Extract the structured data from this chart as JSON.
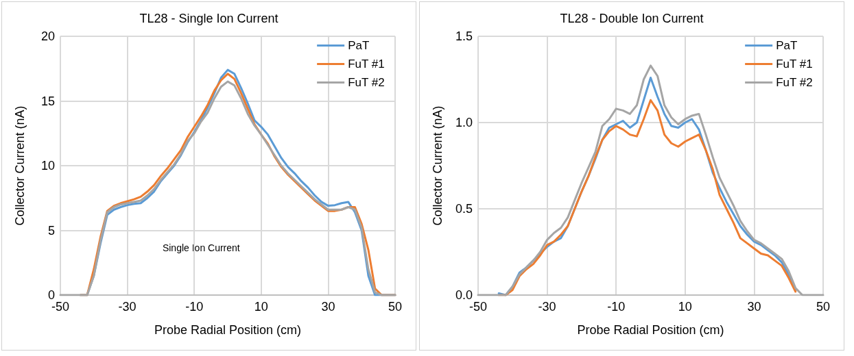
{
  "chart_data": [
    {
      "type": "line",
      "title": "TL28 - Single Ion Current",
      "xlabel": "Probe Radial Position (cm)",
      "ylabel": "Collector Current (nA)",
      "annotations": [
        "Single Ion Current"
      ],
      "x": [
        -50,
        -48,
        -46,
        -44,
        -42,
        -40,
        -38,
        -36,
        -34,
        -32,
        -30,
        -28,
        -26,
        -24,
        -22,
        -20,
        -18,
        -16,
        -14,
        -12,
        -10,
        -8,
        -6,
        -4,
        -2,
        0,
        2,
        4,
        6,
        8,
        10,
        12,
        14,
        16,
        18,
        20,
        22,
        24,
        26,
        28,
        30,
        32,
        34,
        36,
        38,
        40,
        42,
        44,
        46,
        48,
        50
      ],
      "series": [
        {
          "name": "PaT",
          "color": "#5b9bd5",
          "values": [
            null,
            null,
            null,
            0,
            0,
            1.5,
            4,
            6.2,
            6.6,
            6.8,
            6.95,
            7.05,
            7.1,
            7.5,
            8,
            8.8,
            9.4,
            10,
            10.8,
            11.8,
            12.6,
            13.5,
            14.5,
            15.6,
            16.8,
            17.4,
            17.1,
            16,
            14.8,
            13.5,
            13,
            12.4,
            11.5,
            10.6,
            9.9,
            9.4,
            8.8,
            8.3,
            7.7,
            7.2,
            6.9,
            6.95,
            7.1,
            7.2,
            6.4,
            5,
            1.5,
            0,
            0,
            0,
            0
          ]
        },
        {
          "name": "FuT #1",
          "color": "#ed7d31",
          "values": [
            null,
            null,
            null,
            0,
            0,
            2,
            4.5,
            6.5,
            6.9,
            7.1,
            7.25,
            7.4,
            7.6,
            8,
            8.5,
            9.2,
            9.8,
            10.5,
            11.2,
            12.2,
            13,
            13.8,
            14.7,
            15.8,
            16.6,
            17.1,
            16.7,
            15.6,
            14.4,
            13.2,
            12.4,
            11.7,
            10.7,
            9.9,
            9.3,
            8.8,
            8.3,
            7.8,
            7.3,
            6.9,
            6.5,
            6.5,
            6.6,
            6.8,
            6.8,
            5.5,
            3.5,
            0.5,
            0,
            0,
            0
          ]
        },
        {
          "name": "FuT #2",
          "color": "#a5a5a5",
          "values": [
            0,
            0,
            0,
            0,
            0,
            1.5,
            4.2,
            6.4,
            6.8,
            7,
            7.1,
            7.2,
            7.3,
            7.7,
            8.2,
            8.9,
            9.5,
            10.1,
            10.9,
            11.9,
            12.5,
            13.4,
            14.1,
            15.2,
            16.1,
            16.5,
            16.2,
            15.2,
            14,
            13.1,
            12.4,
            11.6,
            10.8,
            10,
            9.4,
            8.9,
            8.4,
            7.9,
            7.4,
            7,
            6.6,
            6.6,
            6.6,
            6.8,
            6.6,
            5.2,
            2,
            0.2,
            0,
            0,
            0
          ]
        }
      ],
      "xlim": [
        -50,
        50
      ],
      "xticks": [
        -50,
        -30,
        -10,
        10,
        30,
        50
      ],
      "ylim": [
        0,
        20
      ],
      "yticks": [
        0,
        5,
        10,
        15,
        20
      ],
      "grid": true,
      "legend": "top right",
      "marker": "none",
      "line_style": "solid"
    },
    {
      "type": "line",
      "title": "TL28 - Double Ion Current",
      "xlabel": "Probe Radial Position (cm)",
      "ylabel": "Collector Current (nA)",
      "x": [
        -50,
        -48,
        -46,
        -44,
        -42,
        -40,
        -38,
        -36,
        -34,
        -32,
        -30,
        -28,
        -26,
        -24,
        -22,
        -20,
        -18,
        -16,
        -14,
        -12,
        -10,
        -8,
        -6,
        -4,
        -2,
        0,
        2,
        4,
        6,
        8,
        10,
        12,
        14,
        16,
        18,
        20,
        22,
        24,
        26,
        28,
        30,
        32,
        34,
        36,
        38,
        40,
        42,
        44,
        46,
        48,
        50
      ],
      "series": [
        {
          "name": "PaT",
          "color": "#5b9bd5",
          "values": [
            null,
            null,
            null,
            0.01,
            0,
            0.05,
            0.13,
            0.16,
            0.2,
            0.24,
            0.28,
            0.31,
            0.33,
            0.4,
            0.5,
            0.6,
            0.69,
            0.79,
            0.9,
            0.97,
            0.99,
            1.01,
            0.97,
            1,
            1.13,
            1.26,
            1.15,
            1.05,
            0.98,
            0.97,
            1,
            1.02,
            0.96,
            0.84,
            0.71,
            0.62,
            0.54,
            0.47,
            0.4,
            0.35,
            0.31,
            0.29,
            0.26,
            0.23,
            0.19,
            0.12,
            0.03,
            null,
            null,
            null,
            null
          ]
        },
        {
          "name": "FuT #1",
          "color": "#ed7d31",
          "values": [
            null,
            null,
            null,
            0,
            0,
            0.03,
            0.11,
            0.15,
            0.18,
            0.23,
            0.29,
            0.31,
            0.35,
            0.4,
            0.5,
            0.6,
            0.69,
            0.8,
            0.9,
            0.95,
            0.98,
            0.96,
            0.93,
            0.92,
            1.02,
            1.13,
            1.07,
            0.93,
            0.88,
            0.86,
            0.89,
            0.91,
            0.93,
            0.84,
            0.73,
            0.58,
            0.5,
            0.42,
            0.33,
            0.3,
            0.27,
            0.24,
            0.23,
            0.2,
            0.17,
            0.1,
            0.02,
            null,
            null,
            null,
            null
          ]
        },
        {
          "name": "FuT #2",
          "color": "#a5a5a5",
          "values": [
            0,
            0,
            0,
            0,
            0,
            0.05,
            0.12,
            0.16,
            0.2,
            0.25,
            0.32,
            0.36,
            0.39,
            0.45,
            0.55,
            0.65,
            0.74,
            0.83,
            0.98,
            1.02,
            1.08,
            1.07,
            1.05,
            1.1,
            1.25,
            1.33,
            1.27,
            1.1,
            1.03,
            0.99,
            1.02,
            1.04,
            1.05,
            0.93,
            0.8,
            0.68,
            0.6,
            0.52,
            0.43,
            0.37,
            0.32,
            0.3,
            0.27,
            0.24,
            0.21,
            0.14,
            0.04,
            0,
            0,
            0,
            0
          ]
        }
      ],
      "xlim": [
        -50,
        50
      ],
      "xticks": [
        -50,
        -30,
        -10,
        10,
        30,
        50
      ],
      "ylim": [
        0,
        1.5
      ],
      "yticks": [
        {
          "value": 0,
          "label": "0.0"
        },
        {
          "value": 0.5,
          "label": "0.5"
        },
        {
          "value": 1,
          "label": "1.0"
        },
        {
          "value": 1.5,
          "label": "1.5"
        }
      ],
      "grid": true,
      "legend": "top right",
      "marker": "none",
      "line_style": "solid"
    }
  ]
}
